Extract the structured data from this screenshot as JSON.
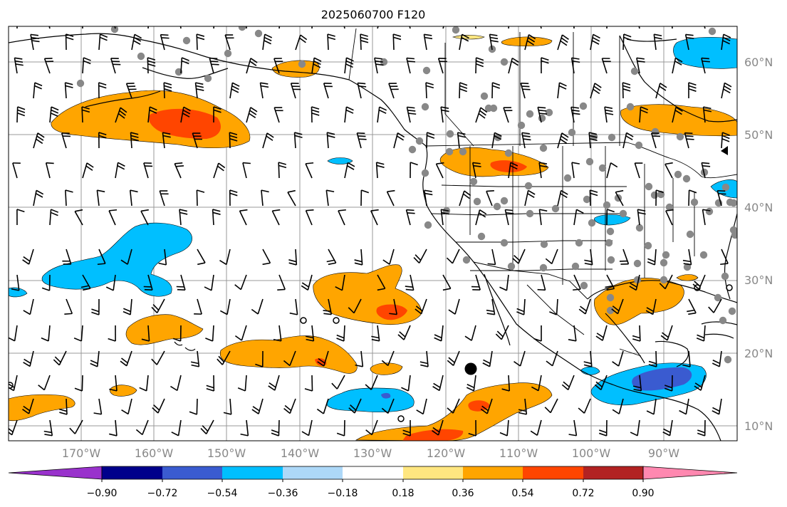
{
  "title": "2025060700 F120",
  "lat_labels": [
    "60°N",
    "50°N",
    "40°N",
    "30°N",
    "20°N",
    "10°N"
  ],
  "lon_labels": [
    "170°W",
    "160°W",
    "150°W",
    "140°W",
    "130°W",
    "120°W",
    "110°W",
    "100°W",
    "90°W"
  ],
  "colorbar": {
    "tick_labels": [
      "−0.90",
      "−0.72",
      "−0.54",
      "−0.36",
      "−0.18",
      "0.18",
      "0.36",
      "0.54",
      "0.72",
      "0.90"
    ],
    "colors": [
      "#9932cc",
      "#00008b",
      "#3a5bd0",
      "#00bfff",
      "#add8f8",
      "#ffffff",
      "#ffe680",
      "#ffa500",
      "#ff4500",
      "#b22222",
      "#ff88b0"
    ]
  },
  "colors": {
    "orange": "#ffa500",
    "red_orange": "#ff4500",
    "sky_blue": "#00bfff",
    "royal_blue": "#3a5bd0",
    "station_dot": "#888888",
    "grid": "#999999"
  },
  "markers": {
    "black_dot": "tropical-cyclone-center"
  }
}
